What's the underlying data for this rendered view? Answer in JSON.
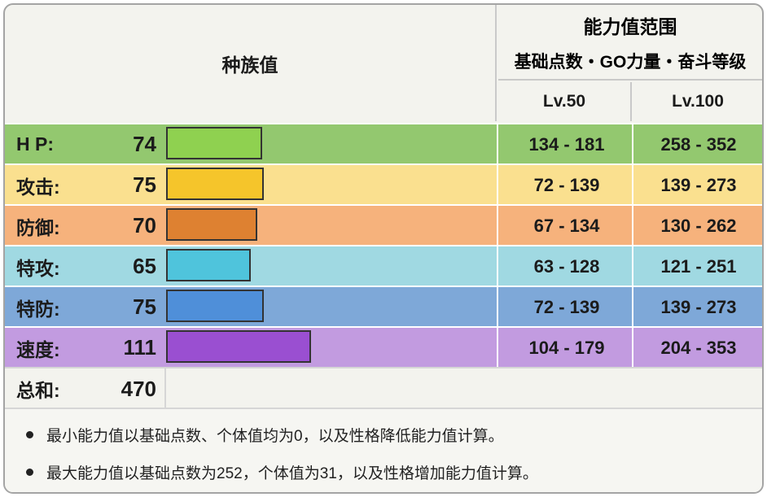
{
  "header": {
    "base_stats_title": "种族值",
    "range_title": "能力值范围",
    "range_subtitle": "基础点数・GO力量・奋斗等级",
    "lv50": "Lv.50",
    "lv100": "Lv.100"
  },
  "stats": [
    {
      "label": "H P:",
      "value": "74",
      "lv50": "134 - 181",
      "lv100": "258 - 352",
      "bar_value": 74,
      "row_color": "#93c86f",
      "bar_color": "#8fd150"
    },
    {
      "label": "攻击:",
      "value": "75",
      "lv50": "72 - 139",
      "lv100": "139 - 273",
      "bar_value": 75,
      "row_color": "#fae08f",
      "bar_color": "#f5c52b"
    },
    {
      "label": "防御:",
      "value": "70",
      "lv50": "67 - 134",
      "lv100": "130 - 262",
      "bar_value": 70,
      "row_color": "#f6b27c",
      "bar_color": "#de8131"
    },
    {
      "label": "特攻:",
      "value": "65",
      "lv50": "63 - 128",
      "lv100": "121 - 251",
      "bar_value": 65,
      "row_color": "#a0d9e2",
      "bar_color": "#4fc4dc"
    },
    {
      "label": "特防:",
      "value": "75",
      "lv50": "72 - 139",
      "lv100": "139 - 273",
      "bar_value": 75,
      "row_color": "#7ea8d8",
      "bar_color": "#4f8fd9"
    },
    {
      "label": "速度:",
      "value": "111",
      "lv50": "104 - 179",
      "lv100": "204 - 353",
      "bar_value": 111,
      "row_color": "#c29be0",
      "bar_color": "#9a4fd1"
    }
  ],
  "total": {
    "label": "总和:",
    "value": "470"
  },
  "notes": [
    "最小能力值以基础点数、个体值均为0，以及性格降低能力值计算。",
    "最大能力值以基础点数为252，个体值为31，以及性格增加能力值计算。"
  ]
}
